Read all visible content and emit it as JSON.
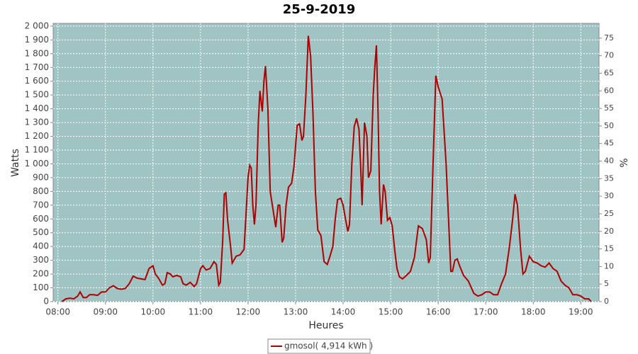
{
  "chart_data": {
    "type": "line",
    "title": "25-9-2019",
    "xlabel": "Heures",
    "ylabel": "Watts",
    "y2label": "%",
    "x": [
      "08:05",
      "08:10",
      "08:15",
      "08:20",
      "08:25",
      "08:28",
      "08:32",
      "08:36",
      "08:40",
      "08:45",
      "08:50",
      "08:55",
      "09:00",
      "09:05",
      "09:10",
      "09:15",
      "09:20",
      "09:25",
      "09:30",
      "09:35",
      "09:40",
      "09:45",
      "09:50",
      "09:55",
      "10:00",
      "10:03",
      "10:07",
      "10:12",
      "10:15",
      "10:18",
      "10:22",
      "10:25",
      "10:30",
      "10:35",
      "10:38",
      "10:42",
      "10:47",
      "10:52",
      "10:55",
      "11:00",
      "11:03",
      "11:07",
      "11:12",
      "11:17",
      "11:20",
      "11:23",
      "11:25",
      "11:28",
      "11:30",
      "11:32",
      "11:34",
      "11:38",
      "11:40",
      "11:45",
      "11:50",
      "11:55",
      "12:00",
      "12:02",
      "12:04",
      "12:06",
      "12:08",
      "12:10",
      "12:13",
      "12:15",
      "12:18",
      "12:20",
      "12:22",
      "12:25",
      "12:28",
      "12:32",
      "12:35",
      "12:38",
      "12:40",
      "12:43",
      "12:45",
      "12:48",
      "12:51",
      "12:55",
      "12:58",
      "13:02",
      "13:05",
      "13:08",
      "13:10",
      "13:13",
      "13:16",
      "13:19",
      "13:22",
      "13:25",
      "13:28",
      "13:32",
      "13:36",
      "13:40",
      "13:44",
      "13:47",
      "13:50",
      "13:53",
      "13:57",
      "14:00",
      "14:03",
      "14:06",
      "14:08",
      "14:11",
      "14:14",
      "14:17",
      "14:20",
      "14:22",
      "14:24",
      "14:27",
      "14:30",
      "14:32",
      "14:35",
      "14:38",
      "14:40",
      "14:42",
      "14:44",
      "14:46",
      "14:48",
      "14:51",
      "14:53",
      "14:56",
      "14:59",
      "15:02",
      "15:05",
      "15:08",
      "15:11",
      "15:15",
      "15:20",
      "15:25",
      "15:30",
      "15:35",
      "15:40",
      "15:45",
      "15:48",
      "15:50",
      "15:53",
      "15:57",
      "16:00",
      "16:05",
      "16:10",
      "16:13",
      "16:16",
      "16:18",
      "16:21",
      "16:24",
      "16:27",
      "16:32",
      "16:38",
      "16:45",
      "16:50",
      "16:55",
      "17:00",
      "17:05",
      "17:10",
      "17:15",
      "17:20",
      "17:25",
      "17:30",
      "17:34",
      "17:37",
      "17:40",
      "17:44",
      "17:47",
      "17:50",
      "17:55",
      "18:00",
      "18:05",
      "18:10",
      "18:15",
      "18:20",
      "18:25",
      "18:30",
      "18:35",
      "18:40",
      "18:45",
      "18:50",
      "18:55",
      "19:00",
      "19:05",
      "19:10",
      "19:13"
    ],
    "series": [
      {
        "name": "gmosol( 4,914 kWh )",
        "color": "#b00000",
        "values": [
          0,
          20,
          25,
          20,
          40,
          70,
          30,
          30,
          50,
          50,
          45,
          70,
          70,
          100,
          115,
          95,
          90,
          95,
          130,
          185,
          170,
          165,
          160,
          240,
          260,
          200,
          170,
          120,
          130,
          210,
          200,
          180,
          190,
          180,
          130,
          120,
          140,
          110,
          130,
          240,
          260,
          230,
          240,
          290,
          270,
          120,
          140,
          450,
          780,
          790,
          600,
          400,
          280,
          330,
          340,
          380,
          900,
          990,
          970,
          700,
          560,
          700,
          1300,
          1530,
          1380,
          1600,
          1710,
          1400,
          800,
          650,
          540,
          700,
          700,
          430,
          460,
          700,
          830,
          860,
          980,
          1280,
          1290,
          1170,
          1200,
          1500,
          1930,
          1780,
          1350,
          800,
          520,
          480,
          290,
          270,
          340,
          400,
          600,
          740,
          750,
          700,
          600,
          510,
          560,
          1000,
          1270,
          1330,
          1250,
          1000,
          700,
          1300,
          1200,
          900,
          950,
          1500,
          1700,
          1860,
          1400,
          800,
          560,
          850,
          800,
          590,
          610,
          550,
          380,
          240,
          180,
          165,
          190,
          220,
          320,
          550,
          530,
          450,
          280,
          320,
          900,
          1640,
          1560,
          1470,
          1000,
          600,
          220,
          220,
          300,
          310,
          260,
          190,
          150,
          60,
          40,
          50,
          70,
          70,
          50,
          50,
          130,
          200,
          400,
          600,
          780,
          700,
          380,
          200,
          220,
          330,
          290,
          280,
          260,
          250,
          280,
          240,
          220,
          150,
          120,
          100,
          50,
          50,
          40,
          20,
          20,
          0
        ]
      }
    ],
    "xlim": [
      "07:54",
      "19:23"
    ],
    "xticks": [
      "08:00",
      "09:00",
      "10:00",
      "11:00",
      "12:00",
      "13:00",
      "14:00",
      "15:00",
      "16:00",
      "17:00",
      "18:00",
      "19:00"
    ],
    "ylim": [
      0,
      2020
    ],
    "yticks": [
      0,
      100,
      200,
      300,
      400,
      500,
      600,
      700,
      800,
      900,
      {
        "value": 1000,
        "label": "1 000"
      },
      {
        "value": 1100,
        "label": "1 100"
      },
      {
        "value": 1200,
        "label": "1 200"
      },
      {
        "value": 1300,
        "label": "1 300"
      },
      {
        "value": 1400,
        "label": "1 400"
      },
      {
        "value": 1500,
        "label": "1 500"
      },
      {
        "value": 1600,
        "label": "1 600"
      },
      {
        "value": 1700,
        "label": "1 700"
      },
      {
        "value": 1800,
        "label": "1 800"
      },
      {
        "value": 1900,
        "label": "1 900"
      },
      {
        "value": 2000,
        "label": "2 000"
      }
    ],
    "y2lim": [
      0,
      79.2
    ],
    "y2ticks": [
      0,
      5,
      10,
      15,
      20,
      25,
      30,
      35,
      40,
      45,
      50,
      55,
      60,
      65,
      70,
      75
    ],
    "grid": true,
    "plot_background": "#a0c4c4",
    "legend": "bottom"
  }
}
